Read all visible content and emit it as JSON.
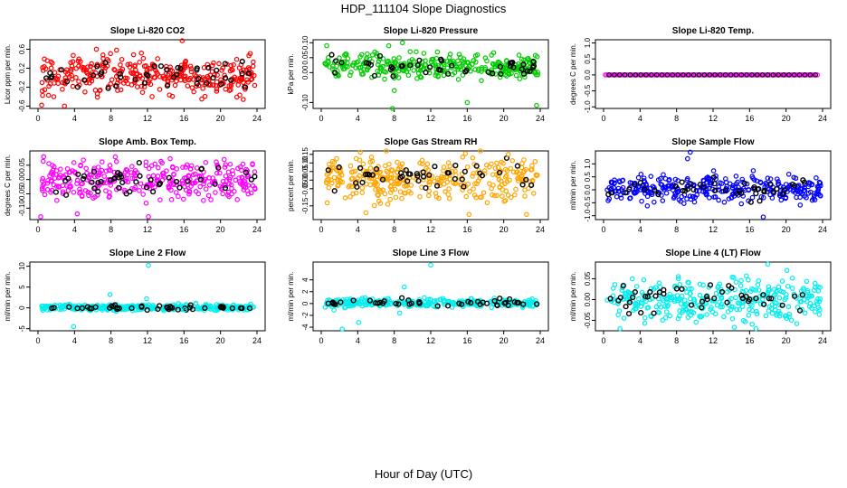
{
  "page": {
    "title": "HDP_111104  Slope Diagnostics",
    "xlabel": "Hour of Day (UTC)"
  },
  "chart_data": [
    {
      "type": "scatter",
      "title": "Slope Li-820 CO2",
      "ylabel": "Licor ppm per min.",
      "xlim": [
        0,
        24
      ],
      "xticks": [
        0,
        4,
        8,
        12,
        16,
        20,
        24
      ],
      "ylim": [
        -0.65,
        0.8
      ],
      "yticks": [
        -0.6,
        -0.2,
        0.2,
        0.6
      ],
      "color": "#ff0000",
      "spread": 0.2,
      "center": 0.05,
      "outliers": [
        [
          15.8,
          0.78
        ],
        [
          2.9,
          -0.6
        ],
        [
          0.4,
          -0.58
        ],
        [
          6.4,
          0.6
        ],
        [
          12.5,
          -0.4
        ]
      ]
    },
    {
      "type": "scatter",
      "title": "Slope Li-820 Pressure",
      "ylabel": "kPa per min.",
      "xlim": [
        0,
        24
      ],
      "xticks": [
        0,
        4,
        8,
        12,
        16,
        20,
        24
      ],
      "ylim": [
        -0.12,
        0.11
      ],
      "yticks": [
        -0.1,
        0.0,
        0.05,
        0.1
      ],
      "color": "#00cc00",
      "spread": 0.02,
      "center": 0.02,
      "outliers": [
        [
          7.8,
          -0.12
        ],
        [
          16,
          -0.1
        ],
        [
          23.6,
          -0.11
        ],
        [
          0.6,
          0.09
        ],
        [
          7.4,
          0.09
        ],
        [
          8.9,
          0.1
        ],
        [
          8,
          -0.06
        ]
      ]
    },
    {
      "type": "scatter",
      "title": "Slope Li-820 Temp.",
      "ylabel": "degrees C per min.",
      "xlim": [
        0,
        24
      ],
      "xticks": [
        0,
        4,
        8,
        12,
        16,
        20,
        24
      ],
      "ylim": [
        -1.05,
        1.1
      ],
      "yticks": [
        -1.0,
        -0.5,
        0.0,
        0.5,
        1.0
      ],
      "color": "#ff00ff",
      "spread": 0,
      "center": 0,
      "outliers": []
    },
    {
      "type": "scatter",
      "title": "Slope Amb. Box Temp.",
      "ylabel": "degrees C per min.",
      "xlim": [
        0,
        24
      ],
      "xticks": [
        0,
        4,
        8,
        12,
        16,
        20,
        24
      ],
      "ylim": [
        -0.14,
        0.1
      ],
      "yticks": [
        -0.1,
        -0.05,
        0.0,
        0.05
      ],
      "color": "#ff00ff",
      "spread": 0.035,
      "center": 0,
      "outliers": [
        [
          0.3,
          -0.13
        ],
        [
          12.1,
          -0.13
        ],
        [
          4.3,
          -0.12
        ],
        [
          20.4,
          0.07
        ]
      ]
    },
    {
      "type": "scatter",
      "title": "Slope Gas Stream RH",
      "ylabel": "percent per min.",
      "xlim": [
        0,
        24
      ],
      "xticks": [
        0,
        4,
        8,
        12,
        16,
        20,
        24
      ],
      "ylim": [
        -0.23,
        0.17
      ],
      "yticks": [
        -0.15,
        -0.05,
        0.0,
        0.05,
        0.1,
        0.15
      ],
      "color": "#ffa500",
      "spread": 0.06,
      "center": 0.01,
      "outliers": [
        [
          16.2,
          -0.2
        ],
        [
          20.5,
          0.15
        ],
        [
          22.5,
          -0.2
        ],
        [
          4.9,
          -0.19
        ]
      ]
    },
    {
      "type": "scatter",
      "title": "Slope Sample Flow",
      "ylabel": "ml/min per min.",
      "xlim": [
        0,
        24
      ],
      "xticks": [
        0,
        4,
        8,
        12,
        16,
        20,
        24
      ],
      "ylim": [
        -1.15,
        1.5
      ],
      "yticks": [
        -1.0,
        -0.5,
        0.0,
        0.5,
        1.0
      ],
      "color": "#0000ff",
      "spread": 0.25,
      "center": 0.03,
      "outliers": [
        [
          9.2,
          1.2
        ],
        [
          9.5,
          1.45
        ],
        [
          17.5,
          -1.05
        ],
        [
          20.3,
          0.6
        ],
        [
          4.1,
          0.6
        ]
      ]
    },
    {
      "type": "scatter",
      "title": "Slope Line 2 Flow",
      "ylabel": "ml/min per min.",
      "xlim": [
        0,
        24
      ],
      "xticks": [
        0,
        4,
        8,
        12,
        16,
        20,
        24
      ],
      "ylim": [
        -5.5,
        11
      ],
      "yticks": [
        -5,
        0,
        5,
        10
      ],
      "color": "#00eeee",
      "spread": 0.35,
      "center": 0.1,
      "outliers": [
        [
          12.1,
          10.2
        ],
        [
          7.9,
          3.2
        ],
        [
          3.9,
          -4.5
        ],
        [
          11.9,
          2.2
        ],
        [
          16.1,
          -0.4
        ]
      ]
    },
    {
      "type": "scatter",
      "title": "Slope Line 3 Flow",
      "ylabel": "ml/min per min.",
      "xlim": [
        0,
        24
      ],
      "xticks": [
        0,
        4,
        8,
        12,
        16,
        20,
        24
      ],
      "ylim": [
        -4.6,
        7
      ],
      "yticks": [
        -4,
        -2,
        0,
        2,
        4
      ],
      "color": "#00eeee",
      "spread": 0.35,
      "center": 0.1,
      "outliers": [
        [
          12,
          6.5
        ],
        [
          2.3,
          -4.3
        ],
        [
          9.1,
          2.8
        ],
        [
          4.1,
          -3.2
        ],
        [
          8.6,
          -1.6
        ],
        [
          1.4,
          -1.1
        ]
      ]
    },
    {
      "type": "scatter",
      "title": "Slope Line 4 (LT) Flow",
      "ylabel": "ml/min per min.",
      "xlim": [
        0,
        24
      ],
      "xticks": [
        0,
        4,
        8,
        12,
        16,
        20,
        24
      ],
      "ylim": [
        -0.075,
        0.09
      ],
      "yticks": [
        -0.05,
        0.0,
        0.05
      ],
      "color": "#00eeee",
      "spread": 0.025,
      "center": 0,
      "outliers": [
        [
          18,
          0.085
        ],
        [
          20.1,
          0.07
        ],
        [
          16.7,
          -0.07
        ],
        [
          1.8,
          -0.07
        ]
      ]
    }
  ]
}
